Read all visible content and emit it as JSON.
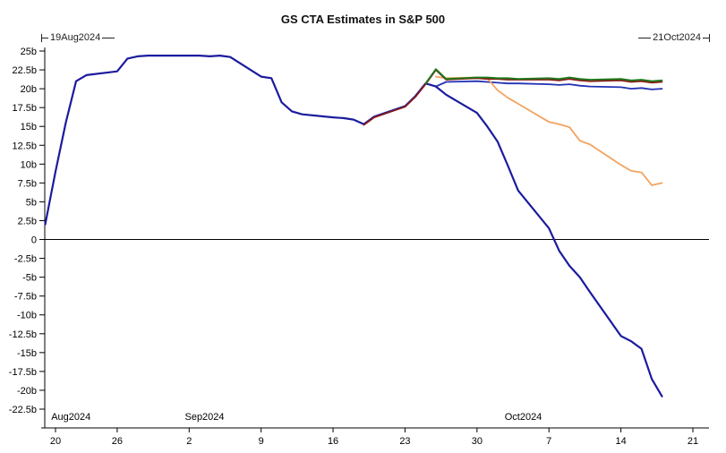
{
  "chart_data": {
    "type": "line",
    "title": "GS CTA Estimates in S&P 500",
    "range_markers": {
      "start": "19Aug2024",
      "end": "21Oct2024"
    },
    "ylim": [
      -22.5,
      25
    ],
    "ylabel": "",
    "xlabel": "",
    "grid": false,
    "legend": "none",
    "y_ticks": [
      {
        "value": 25,
        "label": "25b"
      },
      {
        "value": 22.5,
        "label": "22.5b"
      },
      {
        "value": 20,
        "label": "20b"
      },
      {
        "value": 17.5,
        "label": "17.5b"
      },
      {
        "value": 15,
        "label": "15b"
      },
      {
        "value": 12.5,
        "label": "12.5b"
      },
      {
        "value": 10,
        "label": "10b"
      },
      {
        "value": 7.5,
        "label": "7.5b"
      },
      {
        "value": 5,
        "label": "5b"
      },
      {
        "value": 2.5,
        "label": "2.5b"
      },
      {
        "value": 0,
        "label": "0"
      },
      {
        "value": -2.5,
        "label": "-2.5b"
      },
      {
        "value": -5,
        "label": "-5b"
      },
      {
        "value": -7.5,
        "label": "-7.5b"
      },
      {
        "value": -10,
        "label": "-10b"
      },
      {
        "value": -12.5,
        "label": "-12.5b"
      },
      {
        "value": -15,
        "label": "-15b"
      },
      {
        "value": -17.5,
        "label": "-17.5b"
      },
      {
        "value": -20,
        "label": "-20b"
      },
      {
        "value": -22.5,
        "label": "-22.5b"
      }
    ],
    "x_domain_days": [
      1,
      63
    ],
    "x_ticks": [
      {
        "day": 1,
        "label": "20"
      },
      {
        "day": 7,
        "label": "26"
      },
      {
        "day": 14,
        "label": "2"
      },
      {
        "day": 21,
        "label": "9"
      },
      {
        "day": 28,
        "label": "16"
      },
      {
        "day": 35,
        "label": "23"
      },
      {
        "day": 42,
        "label": "30"
      },
      {
        "day": 49,
        "label": "7"
      },
      {
        "day": 56,
        "label": "14"
      },
      {
        "day": 63,
        "label": "21"
      }
    ],
    "month_labels": [
      {
        "label": "Aug2024",
        "day": 2.5
      },
      {
        "label": "Sep2024",
        "day": 15.5
      },
      {
        "label": "Oct2024",
        "day": 46.5
      }
    ],
    "dates": [
      "Aug 19",
      "Aug 20",
      "Aug 21",
      "Aug 22",
      "Aug 23",
      "Aug 26",
      "Aug 27",
      "Aug 28",
      "Aug 29",
      "Aug 30",
      "Sep 3",
      "Sep 4",
      "Sep 5",
      "Sep 6",
      "Sep 9",
      "Sep 10",
      "Sep 11",
      "Sep 12",
      "Sep 13",
      "Sep 16",
      "Sep 17",
      "Sep 18",
      "Sep 19",
      "Sep 20",
      "Sep 23",
      "Sep 24",
      "Sep 25",
      "Sep 26",
      "Sep 27",
      "Sep 30",
      "Oct 1",
      "Oct 2",
      "Oct 3",
      "Oct 4",
      "Oct 7",
      "Oct 8",
      "Oct 9",
      "Oct 10",
      "Oct 11",
      "Oct 14",
      "Oct 15",
      "Oct 16",
      "Oct 17",
      "Oct 18"
    ],
    "day_offsets": [
      0,
      1,
      2,
      3,
      4,
      7,
      8,
      9,
      10,
      11,
      15,
      16,
      17,
      18,
      21,
      22,
      23,
      24,
      25,
      28,
      29,
      30,
      31,
      32,
      35,
      36,
      37,
      38,
      39,
      42,
      43,
      44,
      45,
      46,
      49,
      50,
      51,
      52,
      53,
      56,
      57,
      58,
      59,
      60
    ],
    "series": [
      {
        "name": "history",
        "color": "#1b1b9e",
        "width": 2.2,
        "values": [
          2.0,
          9.0,
          15.5,
          21.0,
          21.8,
          22.3,
          24.0,
          24.3,
          24.4,
          24.4,
          24.4,
          24.3,
          24.4,
          24.2,
          21.6,
          21.4,
          18.2,
          17.0,
          16.6,
          16.2,
          16.1,
          15.9,
          15.3,
          16.3,
          17.7,
          19.0,
          20.7,
          20.3,
          null,
          null,
          null,
          null,
          null,
          null,
          null,
          null,
          null,
          null,
          null,
          null,
          null,
          null,
          null,
          null
        ]
      },
      {
        "name": "scenario-blue-flat",
        "color": "#2330b4",
        "width": 1.8,
        "values": [
          null,
          null,
          null,
          null,
          null,
          null,
          null,
          null,
          null,
          null,
          null,
          null,
          null,
          null,
          null,
          null,
          null,
          null,
          null,
          null,
          null,
          null,
          null,
          null,
          null,
          null,
          null,
          20.3,
          20.9,
          21.0,
          20.9,
          20.8,
          20.7,
          20.7,
          20.6,
          20.5,
          20.6,
          20.4,
          20.3,
          20.2,
          20.0,
          20.1,
          19.9,
          20.0
        ]
      },
      {
        "name": "scenario-orange",
        "color": "#f2a35f",
        "width": 1.8,
        "values": [
          null,
          null,
          null,
          null,
          null,
          null,
          null,
          null,
          null,
          null,
          null,
          null,
          null,
          null,
          null,
          null,
          null,
          null,
          null,
          null,
          null,
          null,
          null,
          null,
          null,
          null,
          null,
          21.6,
          21.4,
          21.5,
          21.4,
          19.8,
          18.8,
          18.0,
          15.6,
          15.3,
          14.9,
          13.1,
          12.6,
          9.9,
          9.1,
          8.9,
          7.2,
          7.5
        ]
      },
      {
        "name": "scenario-navy-down",
        "color": "#1b1b9e",
        "width": 2.2,
        "values": [
          null,
          null,
          null,
          null,
          null,
          null,
          null,
          null,
          null,
          null,
          null,
          null,
          null,
          null,
          null,
          null,
          null,
          null,
          null,
          null,
          null,
          null,
          null,
          null,
          null,
          null,
          null,
          20.3,
          19.2,
          16.8,
          15.0,
          13.0,
          9.8,
          6.5,
          1.5,
          -1.5,
          -3.5,
          -5.0,
          -7.0,
          -12.8,
          -13.5,
          -14.5,
          -18.5,
          -20.8
        ]
      },
      {
        "name": "scenario-red",
        "color": "#8b1a1a",
        "width": 1.8,
        "values": [
          null,
          null,
          null,
          null,
          null,
          null,
          null,
          null,
          null,
          null,
          null,
          null,
          null,
          null,
          null,
          null,
          null,
          null,
          null,
          null,
          null,
          null,
          15.2,
          16.2,
          17.6,
          18.9,
          20.6,
          22.5,
          21.2,
          21.4,
          21.3,
          21.3,
          21.2,
          21.2,
          21.2,
          21.1,
          21.3,
          21.1,
          21.0,
          21.1,
          20.9,
          21.0,
          20.8,
          20.9
        ]
      },
      {
        "name": "scenario-green",
        "color": "#1a7a1a",
        "width": 1.8,
        "values": [
          null,
          null,
          null,
          null,
          null,
          null,
          null,
          null,
          null,
          null,
          null,
          null,
          null,
          null,
          null,
          null,
          null,
          null,
          null,
          null,
          null,
          null,
          null,
          null,
          null,
          null,
          20.7,
          22.6,
          21.3,
          21.5,
          21.5,
          21.4,
          21.4,
          21.3,
          21.4,
          21.3,
          21.5,
          21.3,
          21.2,
          21.3,
          21.1,
          21.2,
          21.0,
          21.1
        ]
      }
    ]
  }
}
